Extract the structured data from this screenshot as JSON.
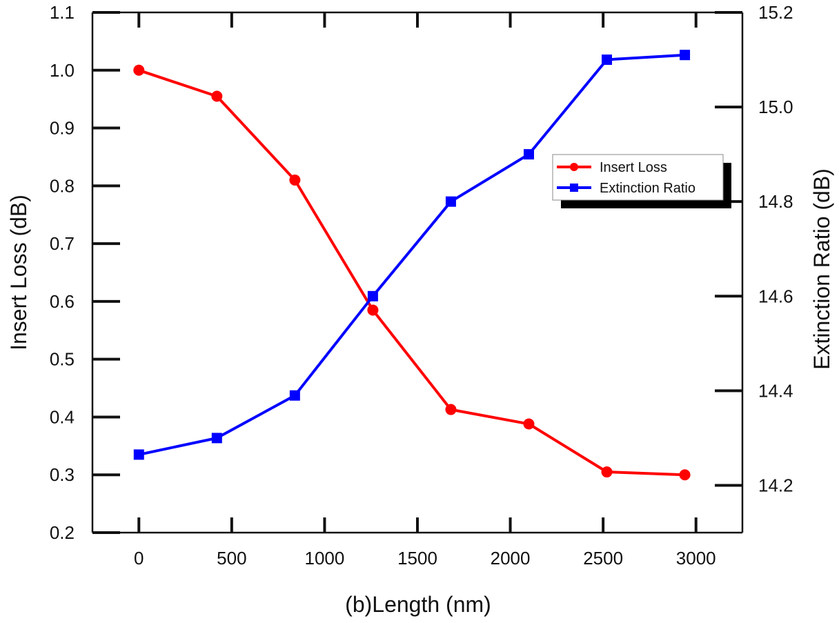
{
  "chart_data": {
    "type": "line",
    "title": "",
    "xlabel": "(b)Length (nm)",
    "ylabel_left": "Insert Loss (dB)",
    "ylabel_right": "Extinction Ratio (dB)",
    "xlim": [
      -250,
      3250
    ],
    "ylim_left": [
      0.2,
      1.1
    ],
    "ylim_right": [
      14.1,
      15.2
    ],
    "x_ticks": [
      0,
      500,
      1000,
      1500,
      2000,
      2500,
      3000
    ],
    "x_tick_labels": [
      "0",
      "500",
      "1000",
      "1500",
      "2000",
      "2500",
      "3000"
    ],
    "y_left_ticks": [
      0.2,
      0.3,
      0.4,
      0.5,
      0.6,
      0.7,
      0.8,
      0.9,
      1.0,
      1.1
    ],
    "y_left_tick_labels": [
      "0.2",
      "0.3",
      "0.4",
      "0.5",
      "0.6",
      "0.7",
      "0.8",
      "0.9",
      "1.0",
      "1.1"
    ],
    "y_right_ticks": [
      14.2,
      14.4,
      14.6,
      14.8,
      15.0,
      15.2
    ],
    "y_right_tick_labels": [
      "14.2",
      "14.4",
      "14.6",
      "14.8",
      "15.0",
      "15.2"
    ],
    "grid": false,
    "legend_position": "right",
    "series": [
      {
        "name": "Insert Loss",
        "axis": "left",
        "color": "#ff0000",
        "marker": "circle",
        "x": [
          0,
          420,
          840,
          1260,
          1680,
          2100,
          2520,
          2940
        ],
        "values": [
          1.0,
          0.955,
          0.81,
          0.585,
          0.413,
          0.388,
          0.305,
          0.3
        ]
      },
      {
        "name": "Extinction Ratio",
        "axis": "right",
        "color": "#0000ff",
        "marker": "square",
        "x": [
          0,
          420,
          840,
          1260,
          1680,
          2100,
          2520,
          2940
        ],
        "values": [
          14.265,
          14.3,
          14.39,
          14.6,
          14.8,
          14.9,
          15.1,
          15.11
        ]
      }
    ]
  }
}
